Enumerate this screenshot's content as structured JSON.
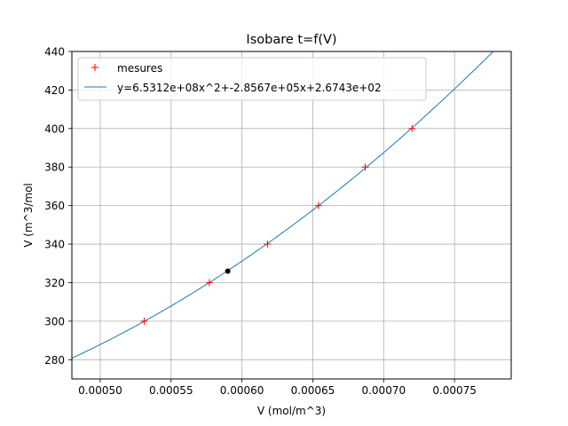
{
  "chart_data": {
    "type": "scatter",
    "title": "Isobare t=f(V)",
    "xlabel": "V (mol/m^3)",
    "ylabel": "V (m^3/mol",
    "xlim": [
      0.00048,
      0.00079
    ],
    "ylim": [
      270,
      440
    ],
    "xticks": [
      0.0005,
      0.00055,
      0.0006,
      0.00065,
      0.0007,
      0.00075
    ],
    "xtick_labels": [
      "0.00050",
      "0.00055",
      "0.00060",
      "0.00065",
      "0.00070",
      "0.00075"
    ],
    "yticks": [
      280,
      300,
      320,
      340,
      360,
      380,
      400,
      420,
      440
    ],
    "ytick_labels": [
      "280",
      "300",
      "320",
      "340",
      "360",
      "380",
      "400",
      "420",
      "440"
    ],
    "grid": true,
    "legend_position": "top-left",
    "series": [
      {
        "name": "mesures",
        "kind": "markers",
        "marker": "+",
        "color": "#ff0000",
        "x": [
          0.000531,
          0.000577,
          0.000618,
          0.000654,
          0.000687,
          0.00072
        ],
        "y": [
          300,
          320,
          340,
          360,
          380,
          400
        ]
      },
      {
        "name": "y=6.5312e+08x^2+-2.8567e+05x+2.6743e+02",
        "kind": "fit_curve",
        "color": "#1f77b4",
        "coefficients": [
          653120000,
          -285670,
          267.43
        ],
        "x_range": [
          0.00048,
          0.00079
        ]
      },
      {
        "kind": "point",
        "color": "#000000",
        "x": [
          0.00059
        ],
        "y": [
          326
        ]
      }
    ]
  }
}
